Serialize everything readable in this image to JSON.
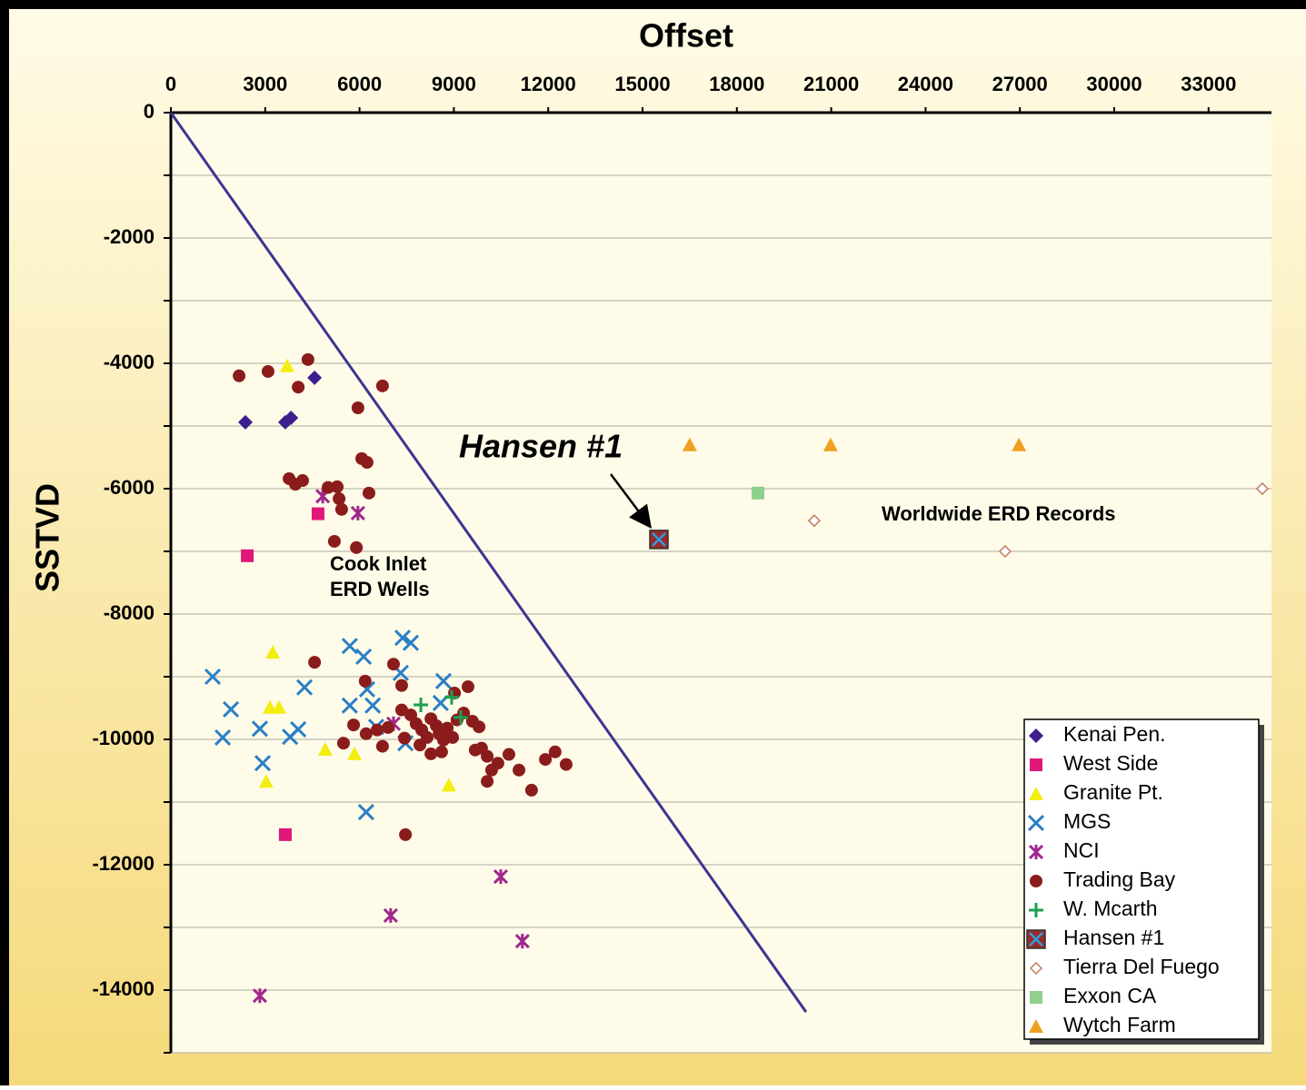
{
  "chart_data": {
    "type": "scatter",
    "xlabel": "Offset",
    "ylabel": "SSTVD",
    "xlim": [
      0,
      35000
    ],
    "ylim": [
      -15000,
      0
    ],
    "xticks": [
      0,
      3000,
      6000,
      9000,
      12000,
      15000,
      18000,
      21000,
      24000,
      27000,
      30000,
      33000
    ],
    "yticks": [
      -14000,
      -12000,
      -10000,
      -8000,
      -6000,
      -4000,
      -2000,
      0
    ],
    "y_minor_ticks": [
      -15000,
      -13000,
      -11000,
      -9000,
      -7000,
      -5000,
      -3000,
      -1000
    ],
    "grid": true,
    "legend": "lower right",
    "annotations": {
      "hansen": "Hansen #1",
      "cook_inlet": [
        "Cook Inlet",
        "ERD Wells"
      ],
      "worldwide": "Worldwide ERD Records"
    },
    "lines": [
      {
        "color": "#3c3590",
        "x": [
          0,
          20200
        ],
        "values": [
          0,
          -14350
        ]
      }
    ],
    "series": [
      {
        "name": "Kenai Pen.",
        "color": "#3d1f8c",
        "marker": "diamond",
        "x": [
          2370,
          3640,
          3820,
          4570
        ],
        "values": [
          -4940,
          -4940,
          -4870,
          -4230
        ]
      },
      {
        "name": "West Side",
        "color": "#e0187a",
        "marker": "square",
        "x": [
          4680,
          2430,
          3640
        ],
        "values": [
          -6400,
          -7070,
          -11520
        ]
      },
      {
        "name": "Granite Pt.",
        "color": "#f2ee10",
        "marker": "triangle",
        "x": [
          3700,
          3240,
          3150,
          3440,
          4910,
          5840,
          3030,
          8840
        ],
        "values": [
          -4040,
          -8610,
          -9490,
          -9490,
          -10160,
          -10230,
          -10670,
          -10730
        ]
      },
      {
        "name": "MGS",
        "color": "#2a7fc6",
        "marker": "x",
        "x": [
          1330,
          1910,
          1650,
          2830,
          2920,
          3790,
          4050,
          4250,
          5690,
          6130,
          5690,
          6420,
          6240,
          6530,
          7370,
          7630,
          7310,
          7460,
          8670,
          8580,
          6210
        ],
        "values": [
          -9000,
          -9520,
          -9970,
          -9830,
          -10380,
          -9960,
          -9840,
          -9170,
          -8510,
          -8680,
          -9460,
          -9460,
          -9200,
          -9800,
          -8380,
          -8460,
          -8940,
          -10060,
          -9070,
          -9420,
          -11160
        ]
      },
      {
        "name": "NCI",
        "color": "#a0288c",
        "marker": "asterisk",
        "x": [
          4830,
          5950,
          7080,
          10490,
          6990,
          11180,
          2830
        ],
        "values": [
          -6120,
          -6390,
          -9750,
          -12190,
          -12810,
          -13220,
          -14090
        ]
      },
      {
        "name": "Trading Bay",
        "color": "#8b1c1c",
        "marker": "circle",
        "x": [
          2170,
          3090,
          4050,
          4360,
          6730,
          5950,
          3760,
          3960,
          4190,
          5000,
          5290,
          5350,
          5430,
          6070,
          6240,
          6300,
          5200,
          5900,
          4570,
          6180,
          7080,
          7340,
          5810,
          6210,
          5490,
          6560,
          6730,
          6910,
          7340,
          7630,
          7800,
          7430,
          7980,
          8150,
          8270,
          8440,
          8530,
          8670,
          8790,
          8960,
          9100,
          9020,
          9450,
          9310,
          9590,
          9800,
          8270,
          8610,
          7920,
          7460,
          9680,
          9880,
          10060,
          10200,
          10400,
          10750,
          11070,
          11470,
          11910,
          12220,
          12570,
          10060
        ],
        "values": [
          -4200,
          -4130,
          -4380,
          -3940,
          -4360,
          -4710,
          -5840,
          -5930,
          -5870,
          -5980,
          -5970,
          -6160,
          -6330,
          -5520,
          -5580,
          -6070,
          -6840,
          -6940,
          -8770,
          -9070,
          -8800,
          -9140,
          -9770,
          -9910,
          -10060,
          -9850,
          -10110,
          -9810,
          -9530,
          -9610,
          -9750,
          -9980,
          -9850,
          -9970,
          -9670,
          -9780,
          -9910,
          -10010,
          -9820,
          -9970,
          -9690,
          -9260,
          -9160,
          -9580,
          -9710,
          -9800,
          -10230,
          -10200,
          -10090,
          -11520,
          -10170,
          -10140,
          -10270,
          -10490,
          -10380,
          -10240,
          -10490,
          -10810,
          -10320,
          -10200,
          -10400,
          -10670
        ]
      },
      {
        "name": "W. Mcarth",
        "color": "#1aa050",
        "marker": "plus",
        "x": [
          7950,
          8930,
          9220
        ],
        "values": [
          -9450,
          -9330,
          -9650
        ]
      },
      {
        "name": "Hansen #1",
        "color": "#9a2a2a",
        "marker": "boxed-x",
        "x": [
          15520
        ],
        "values": [
          -6810
        ]
      },
      {
        "name": "Tierra Del Fuego",
        "color": "#c07a5a",
        "marker": "open-diamond",
        "x": [
          20460,
          26530,
          34710
        ],
        "values": [
          -6510,
          -7000,
          -6000
        ]
      },
      {
        "name": "Exxon CA",
        "color": "#8fd08f",
        "marker": "square",
        "x": [
          18670
        ],
        "values": [
          -6070
        ]
      },
      {
        "name": "Wytch Farm",
        "color": "#f0a020",
        "marker": "triangle",
        "x": [
          16500,
          20980,
          26970
        ],
        "values": [
          -5300,
          -5300,
          -5300
        ]
      }
    ]
  }
}
